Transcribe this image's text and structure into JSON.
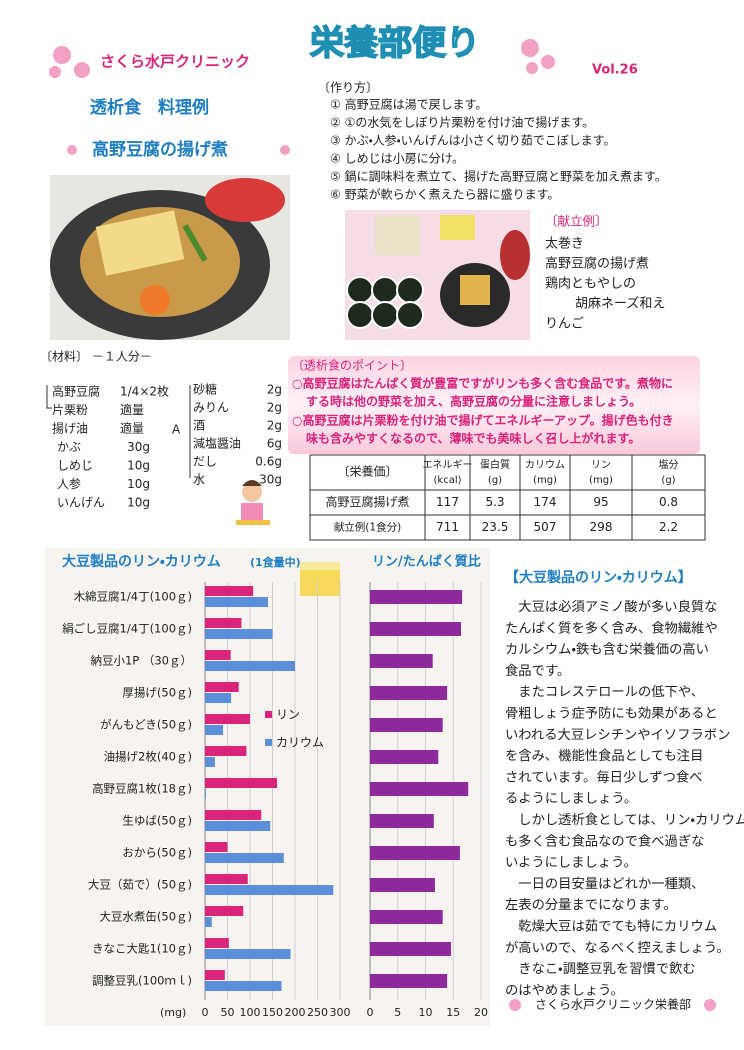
{
  "header": {
    "clinic": "さくら水戸クリニック",
    "title": "栄養部便り",
    "vol": "Vol.26"
  },
  "recipe": {
    "category": "透析食　料理例",
    "name": "高野豆腐の揚げ煮",
    "method_title": "〔作り方〕",
    "steps": [
      "① 高野豆腐は湯で戻します。",
      "② ①の水気をしぼり片栗粉を付け油で揚げます。",
      "③ かぶ・人参・いんげんは小さく切り茹でこぼします。",
      "④ しめじは小房に分け。",
      "⑤ 鍋に調味料を煮立て、揚げた高野豆腐と野菜を加え煮ます。",
      "⑥ 野菜が軟らかく煮えたら器に盛ります。"
    ],
    "menu_title": "〔献立例〕",
    "menu": [
      "太巻き",
      "高野豆腐の揚げ煮",
      "鶏肉ともやしの",
      "胡麻ネーズ和え",
      "りんご"
    ],
    "materials_title": "〔材料〕 －１人分－",
    "materials": [
      [
        "高野豆腐",
        "1/4×2枚"
      ],
      [
        "片栗粉",
        "適量"
      ],
      [
        "揚げ油",
        "適量"
      ],
      [
        "かぶ",
        "30g"
      ],
      [
        "しめじ",
        "10g"
      ],
      [
        "人参",
        "10g"
      ],
      [
        "いんげん",
        "10g"
      ]
    ],
    "seasoning_label": "A",
    "seasonings": [
      [
        "砂糖",
        "2g"
      ],
      [
        "みりん",
        "2g"
      ],
      [
        "酒",
        "2g"
      ],
      [
        "減塩醤油",
        "6g"
      ],
      [
        "だし",
        "0.6g"
      ],
      [
        "水",
        "30g"
      ]
    ]
  },
  "points": {
    "title": "〔透析食のポイント〕",
    "items": [
      [
        "○高野豆腐はたんぱく質が豊富ですがリンも多く含む食品です。煮物に",
        "する時は他の野菜を加え、高野豆腐の分量に注意しましょう。"
      ],
      [
        "○高野豆腐は片栗粉を付け油で揚げてエネルギーアップ。揚げ色も付き",
        "味も含みやすくなるので、薄味でも美味しく召し上がれます。"
      ]
    ]
  },
  "nutrition": {
    "header": [
      [
        "〔栄養価〕"
      ],
      [
        "エネルギー",
        "(kcal)"
      ],
      [
        "蛋白質",
        "(g)"
      ],
      [
        "カリウム",
        "(mg)"
      ],
      [
        "リン",
        "(mg)"
      ],
      [
        "塩分",
        "(g)"
      ]
    ],
    "rows": [
      [
        "高野豆腐揚げ煮",
        117,
        5.3,
        174,
        95,
        0.8
      ],
      [
        "献立例(1食分)",
        711,
        23.5,
        507,
        298,
        2.2
      ]
    ]
  },
  "chart_data": [
    {
      "type": "bar",
      "orientation": "horizontal",
      "title": "大豆製品のリン・カリウム",
      "subtitle": "(1食量中)",
      "x_label": "(mg)",
      "categories": [
        "木綿豆腐1/4丁(100ｇ)",
        "絹ごし豆腐1/4丁(100ｇ)",
        "納豆小1P （30ｇ）",
        "厚揚げ(50ｇ)",
        "がんもどき(50ｇ)",
        "油揚げ2枚(40ｇ)",
        "高野豆腐1枚(18ｇ)",
        "生ゆば(50ｇ)",
        "おから(50ｇ)",
        "大豆（茹で）(50ｇ)",
        "大豆水煮缶(50ｇ)",
        "きなこ大匙1(10ｇ)",
        "調整豆乳(100ｍｌ)"
      ],
      "series": [
        {
          "name": "リン",
          "color": "#d8247a",
          "values": [
            107,
            81,
            57,
            75,
            100,
            92,
            160,
            125,
            50,
            95,
            85,
            53,
            44
          ]
        },
        {
          "name": "カリウム",
          "color": "#5b8fd9",
          "values": [
            140,
            150,
            200,
            58,
            40,
            22,
            2,
            145,
            175,
            285,
            15,
            190,
            170
          ]
        }
      ],
      "xlim": [
        0,
        300
      ],
      "xticks": [
        0,
        50,
        100,
        150,
        200,
        250,
        300
      ],
      "grid": true
    },
    {
      "type": "bar",
      "orientation": "horizontal",
      "title": "リン/たんぱく質比",
      "color": "#8e2a9e",
      "values": [
        16.6,
        16.4,
        11.3,
        13.9,
        13.1,
        12.3,
        17.7,
        11.5,
        16.2,
        11.7,
        13.1,
        14.6,
        13.9
      ],
      "xlim": [
        0,
        20
      ],
      "xticks": [
        0,
        5,
        10,
        15,
        20
      ],
      "grid": true
    }
  ],
  "article": {
    "title": "【大豆製品のリン・カリウム】",
    "lines": [
      "　大豆は必須アミノ酸が多い良質な",
      "たんぱく質を多く含み、食物繊維や",
      "カルシウム・鉄も含む栄養価の高い",
      "食品です。",
      "　またコレステロールの低下や、",
      "骨粗しょう症予防にも効果があると",
      "いわれる大豆レシチンやイソフラボン",
      "を含み、機能性食品としても注目",
      "されています。毎日少しずつ食べ",
      "るようにしましょう。",
      "　しかし透析食としては、リン・カリウム",
      "も多く含む食品なので食べ過ぎな",
      "いようにしましょう。",
      "　一日の目安量はどれか一種類、",
      "左表の分量までになります。",
      "　乾燥大豆は茹でても特にカリウム",
      "が高いので、なるべく控えましょう。",
      "　きなこ・調整豆乳を習慣で飲む",
      "のはやめましょう。"
    ]
  },
  "footer": "さくら水戸クリニック栄養部"
}
